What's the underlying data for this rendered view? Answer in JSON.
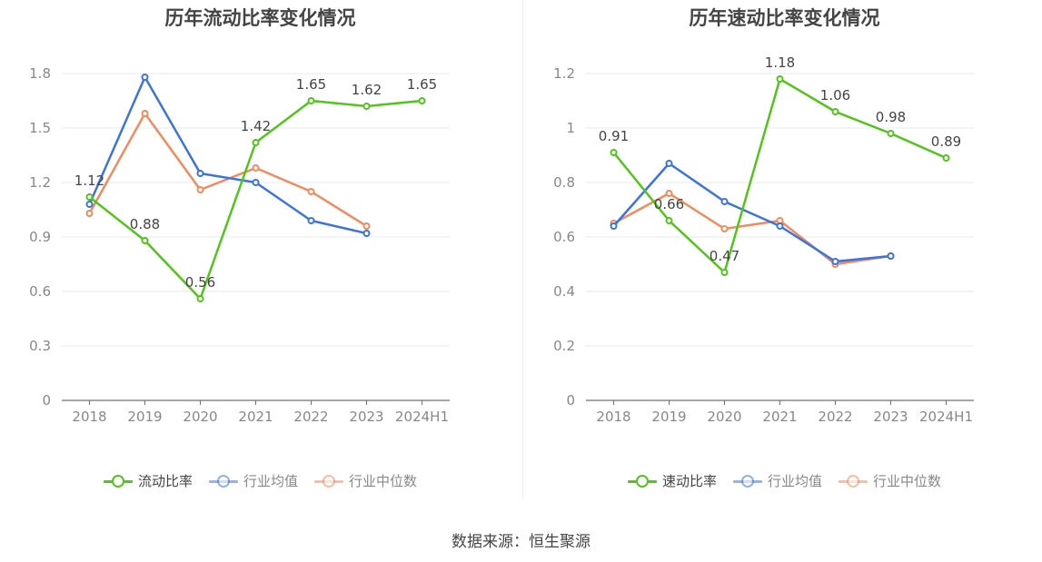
{
  "charts": [
    {
      "title": "历年流动比率变化情况",
      "chart_data": {
        "type": "line",
        "categories": [
          "2018",
          "2019",
          "2020",
          "2021",
          "2022",
          "2023",
          "2024H1"
        ],
        "ylim": [
          0,
          1.8
        ],
        "yticks": [
          "0",
          "0.3",
          "0.6",
          "0.9",
          "1.2",
          "1.5",
          "1.8"
        ],
        "grid": true,
        "legend_position": "bottom",
        "series": [
          {
            "name": "流动比率",
            "color": "#52c41a",
            "values": [
              1.12,
              0.88,
              0.56,
              1.42,
              1.65,
              1.62,
              1.65
            ],
            "data_labels": [
              "1.12",
              "0.88",
              "0.56",
              "1.42",
              "1.65",
              "1.62",
              "1.65"
            ]
          },
          {
            "name": "行业均值",
            "color": "#3b74e0",
            "values": [
              1.08,
              1.78,
              1.25,
              1.2,
              0.99,
              0.92,
              null
            ]
          },
          {
            "name": "行业中位数",
            "color": "#f28a5c",
            "values": [
              1.03,
              1.58,
              1.16,
              1.28,
              1.15,
              0.96,
              null
            ]
          }
        ]
      }
    },
    {
      "title": "历年速动比率变化情况",
      "chart_data": {
        "type": "line",
        "categories": [
          "2018",
          "2019",
          "2020",
          "2021",
          "2022",
          "2023",
          "2024H1"
        ],
        "ylim": [
          0,
          1.2
        ],
        "yticks": [
          "0",
          "0.2",
          "0.4",
          "0.6",
          "0.8",
          "1",
          "1.2"
        ],
        "grid": true,
        "legend_position": "bottom",
        "series": [
          {
            "name": "速动比率",
            "color": "#52c41a",
            "values": [
              0.91,
              0.66,
              0.47,
              1.18,
              1.06,
              0.98,
              0.89
            ],
            "data_labels": [
              "0.91",
              "0.66",
              "0.47",
              "1.18",
              "1.06",
              "0.98",
              "0.89"
            ]
          },
          {
            "name": "行业均值",
            "color": "#3b74e0",
            "values": [
              0.64,
              0.87,
              0.73,
              0.64,
              0.51,
              0.53,
              null
            ]
          },
          {
            "name": "行业中位数",
            "color": "#f28a5c",
            "values": [
              0.65,
              0.76,
              0.63,
              0.66,
              0.5,
              0.53,
              null
            ]
          }
        ]
      }
    }
  ],
  "source": "数据来源：恒生聚源"
}
